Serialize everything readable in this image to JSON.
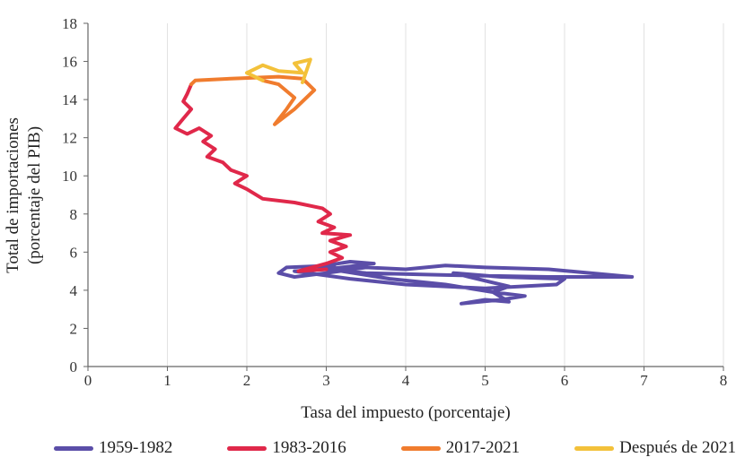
{
  "chart_data": {
    "type": "line",
    "title": "",
    "xlabel": "Tasa del impuesto (porcentaje)",
    "ylabel_line1": "Total de importaciones",
    "ylabel_line2": "(porcentaje del PIB)",
    "xlim": [
      0,
      8
    ],
    "ylim": [
      0,
      18
    ],
    "xticks": [
      "0",
      "1",
      "2",
      "3",
      "4",
      "5",
      "6",
      "7",
      "8"
    ],
    "yticks": [
      "0",
      "2",
      "4",
      "6",
      "8",
      "10",
      "12",
      "14",
      "16",
      "18"
    ],
    "grid": "vertical",
    "legend_position": "bottom",
    "series": [
      {
        "name": "1959-1982",
        "color": "#5b4ea8",
        "points": [
          [
            3.1,
            5.3
          ],
          [
            2.5,
            5.2
          ],
          [
            2.4,
            4.9
          ],
          [
            2.6,
            4.7
          ],
          [
            3.0,
            4.9
          ],
          [
            3.5,
            5.2
          ],
          [
            4.0,
            5.1
          ],
          [
            4.5,
            5.3
          ],
          [
            5.0,
            5.2
          ],
          [
            5.8,
            5.1
          ],
          [
            6.85,
            4.7
          ],
          [
            5.8,
            4.7
          ],
          [
            4.5,
            4.8
          ],
          [
            3.5,
            4.9
          ],
          [
            3.0,
            5.1
          ],
          [
            2.6,
            5.0
          ],
          [
            3.3,
            4.6
          ],
          [
            4.0,
            4.3
          ],
          [
            5.0,
            4.1
          ],
          [
            5.9,
            4.3
          ],
          [
            6.0,
            4.6
          ],
          [
            5.2,
            4.7
          ],
          [
            4.6,
            4.9
          ],
          [
            5.0,
            4.5
          ],
          [
            5.3,
            4.2
          ],
          [
            5.1,
            3.9
          ],
          [
            5.5,
            3.7
          ],
          [
            5.2,
            3.5
          ],
          [
            4.7,
            3.3
          ],
          [
            5.0,
            3.5
          ],
          [
            5.3,
            3.4
          ],
          [
            5.1,
            3.9
          ],
          [
            4.5,
            4.3
          ],
          [
            3.8,
            4.6
          ],
          [
            3.2,
            5.0
          ],
          [
            3.0,
            5.3
          ],
          [
            3.3,
            5.5
          ],
          [
            3.6,
            5.4
          ],
          [
            3.0,
            5.1
          ]
        ]
      },
      {
        "name": "1983-2016",
        "color": "#e0284a",
        "points": [
          [
            3.0,
            5.1
          ],
          [
            2.65,
            5.0
          ],
          [
            3.0,
            5.4
          ],
          [
            3.2,
            5.7
          ],
          [
            3.05,
            6.0
          ],
          [
            3.25,
            6.3
          ],
          [
            3.05,
            6.6
          ],
          [
            3.3,
            6.9
          ],
          [
            2.95,
            7.0
          ],
          [
            3.1,
            7.3
          ],
          [
            2.9,
            7.6
          ],
          [
            3.05,
            8.0
          ],
          [
            2.95,
            8.3
          ],
          [
            2.6,
            8.6
          ],
          [
            2.2,
            8.8
          ],
          [
            2.0,
            9.3
          ],
          [
            1.85,
            9.6
          ],
          [
            2.0,
            10.0
          ],
          [
            1.8,
            10.3
          ],
          [
            1.7,
            10.7
          ],
          [
            1.5,
            11.0
          ],
          [
            1.6,
            11.4
          ],
          [
            1.45,
            11.8
          ],
          [
            1.55,
            12.1
          ],
          [
            1.4,
            12.5
          ],
          [
            1.25,
            12.2
          ],
          [
            1.1,
            12.5
          ],
          [
            1.2,
            13.0
          ],
          [
            1.3,
            13.5
          ],
          [
            1.2,
            13.9
          ],
          [
            1.25,
            14.3
          ],
          [
            1.3,
            14.8
          ]
        ]
      },
      {
        "name": "2017-2021",
        "color": "#f07c2e",
        "points": [
          [
            1.3,
            14.8
          ],
          [
            1.35,
            15.0
          ],
          [
            1.8,
            15.1
          ],
          [
            2.4,
            15.2
          ],
          [
            2.7,
            15.1
          ],
          [
            2.85,
            14.5
          ],
          [
            2.6,
            13.5
          ],
          [
            2.35,
            12.7
          ],
          [
            2.5,
            13.5
          ],
          [
            2.6,
            14.1
          ],
          [
            2.4,
            14.8
          ],
          [
            2.2,
            15.0
          ]
        ]
      },
      {
        "name": "Después de 2021",
        "color": "#f3c13a",
        "points": [
          [
            2.2,
            15.0
          ],
          [
            2.0,
            15.4
          ],
          [
            2.2,
            15.8
          ],
          [
            2.4,
            15.5
          ],
          [
            2.7,
            15.4
          ],
          [
            2.6,
            15.9
          ],
          [
            2.8,
            16.1
          ],
          [
            2.75,
            15.5
          ],
          [
            2.7,
            14.9
          ]
        ]
      }
    ]
  }
}
